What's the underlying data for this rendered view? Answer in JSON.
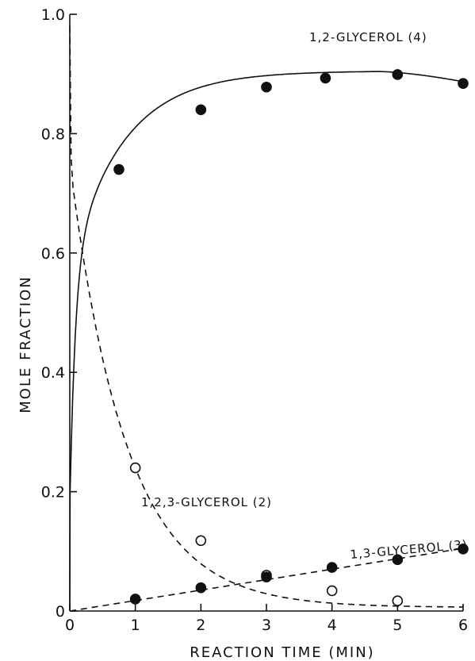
{
  "chart_data": {
    "type": "line",
    "xlabel": "REACTION TIME (MIN)",
    "ylabel": "MOLE FRACTION",
    "xlim": [
      0,
      6
    ],
    "ylim": [
      0,
      1.0
    ],
    "x_ticks": [
      "0",
      "1",
      "2",
      "3",
      "4",
      "5",
      "6"
    ],
    "y_ticks": [
      "0",
      "0.2",
      "0.4",
      "0.6",
      "0.8",
      "1.0"
    ],
    "grid": false,
    "series": [
      {
        "name": "1,2-GLYCEROL (4)",
        "line_style": "solid",
        "marker": "filled",
        "color": "#111111",
        "points": [
          [
            0.75,
            0.74
          ],
          [
            2.0,
            0.84
          ],
          [
            3.0,
            0.878
          ],
          [
            3.9,
            0.893
          ],
          [
            5.0,
            0.899
          ],
          [
            6.0,
            0.884
          ]
        ]
      },
      {
        "name": "1,2,3-GLYCEROL (2)",
        "line_style": "dashed",
        "marker": "open",
        "color": "#111111",
        "points": [
          [
            1.0,
            0.24
          ],
          [
            2.0,
            0.118
          ],
          [
            3.0,
            0.06
          ],
          [
            4.0,
            0.034
          ],
          [
            5.0,
            0.017
          ]
        ]
      },
      {
        "name": "1,3-GLYCEROL (3)",
        "line_style": "dashed",
        "marker": "filled",
        "color": "#111111",
        "points": [
          [
            1.0,
            0.02
          ],
          [
            2.0,
            0.039
          ],
          [
            3.0,
            0.057
          ],
          [
            4.0,
            0.073
          ],
          [
            5.0,
            0.086
          ],
          [
            6.0,
            0.104
          ]
        ]
      }
    ]
  }
}
